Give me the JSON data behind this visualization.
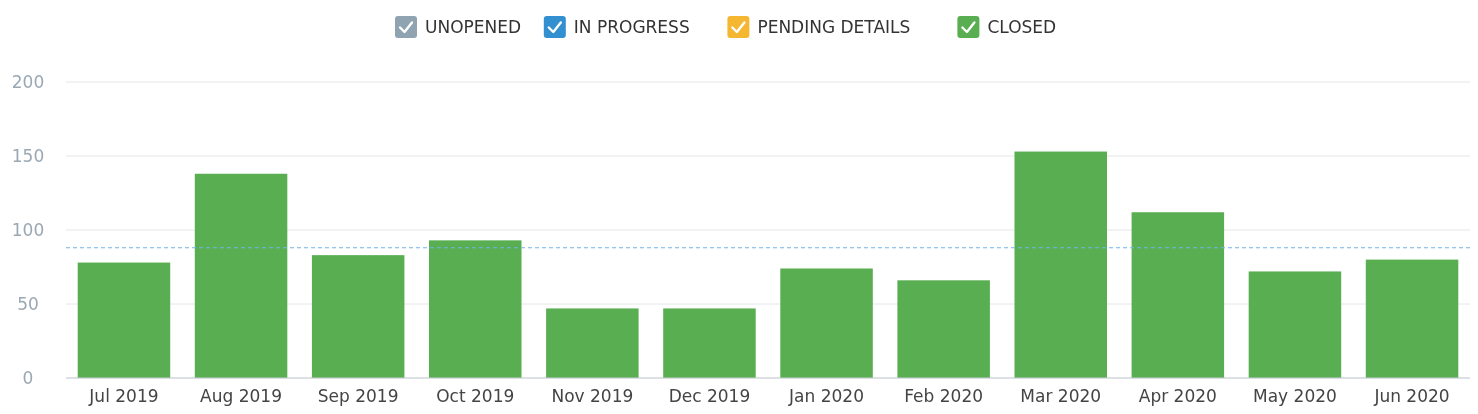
{
  "chart_data": {
    "type": "bar",
    "categories": [
      "Jul 2019",
      "Aug 2019",
      "Sep 2019",
      "Oct 2019",
      "Nov 2019",
      "Dec 2019",
      "Jan 2020",
      "Feb 2020",
      "Mar 2020",
      "Apr 2020",
      "May 2020",
      "Jun 2020"
    ],
    "series": [
      {
        "name": "UNOPENED",
        "color": "#8fa3b0",
        "values": [
          null,
          null,
          null,
          null,
          null,
          null,
          null,
          null,
          null,
          null,
          null,
          null
        ]
      },
      {
        "name": "IN PROGRESS",
        "color": "#3290d0",
        "values": [
          null,
          null,
          null,
          null,
          null,
          null,
          null,
          null,
          null,
          null,
          null,
          null
        ]
      },
      {
        "name": "PENDING DETAILS",
        "color": "#f5b731",
        "values": [
          null,
          null,
          null,
          null,
          null,
          null,
          null,
          null,
          null,
          null,
          null,
          null
        ]
      },
      {
        "name": "CLOSED",
        "color": "#58ae50",
        "values": [
          78,
          138,
          83,
          93,
          47,
          47,
          74,
          66,
          153,
          112,
          72,
          80
        ]
      }
    ],
    "ylim": [
      0,
      200
    ],
    "yticks": [
      0,
      50,
      100,
      150,
      200
    ],
    "grid": "y",
    "legend": "top",
    "ref_lines": [
      {
        "axis": "y",
        "value": 88,
        "color": "#6fb6e8",
        "line_style": "dashed"
      }
    ]
  }
}
